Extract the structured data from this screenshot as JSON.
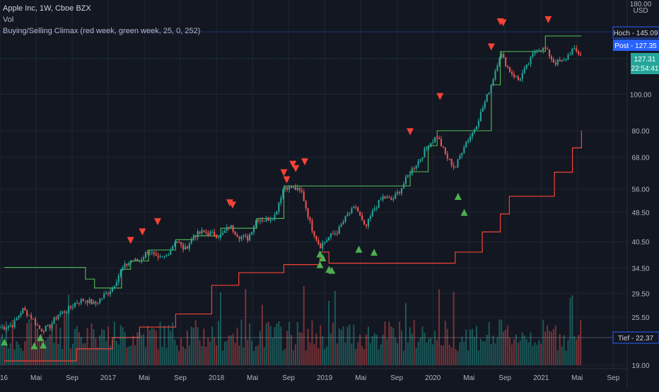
{
  "legend": {
    "symbol": "Apple Inc, 1W, Cboe BZX",
    "volume": "Vol",
    "indicator": "Buying/Selling Climax (red week, green week, 25, 0, 252)"
  },
  "currency": "USD",
  "price_tags": {
    "hoch": "Hoch - 145.09",
    "post": "Post - 127.35",
    "last": "127.31",
    "countdown": "22:54:41",
    "tief": "Tief - 22.37"
  },
  "colors": {
    "background": "#131722",
    "up": "#26a69a",
    "down": "#ef5350",
    "grid": "#1f2533",
    "resistance": "#4caf50",
    "support": "#f44336"
  },
  "chart_data": {
    "type": "line",
    "scale": "log",
    "x_tick_labels": [
      "2016",
      "Mai",
      "Sep",
      "2017",
      "Mai",
      "Sep",
      "2018",
      "Mai",
      "Sep",
      "2019",
      "Mai",
      "Sep",
      "2020",
      "Mai",
      "Sep",
      "2021",
      "Mai",
      "Sep"
    ],
    "y_tick_labels": [
      "180.00",
      "100.00",
      "80.00",
      "68.00",
      "56.00",
      "48.50",
      "40.50",
      "34.50",
      "29.50",
      "25.50",
      "19.00"
    ],
    "price": [
      [
        "2016-01",
        24.0
      ],
      [
        "2016-02",
        24.4
      ],
      [
        "2016-03",
        26.8
      ],
      [
        "2016-04",
        25.5
      ],
      [
        "2016-05",
        23.6
      ],
      [
        "2016-06",
        24.0
      ],
      [
        "2016-07",
        26.0
      ],
      [
        "2016-08",
        26.6
      ],
      [
        "2016-09",
        28.0
      ],
      [
        "2016-10",
        28.4
      ],
      [
        "2016-11",
        27.6
      ],
      [
        "2016-12",
        29.0
      ],
      [
        "2017-01",
        30.5
      ],
      [
        "2017-02",
        34.2
      ],
      [
        "2017-03",
        36.0
      ],
      [
        "2017-04",
        36.1
      ],
      [
        "2017-05",
        38.5
      ],
      [
        "2017-06",
        36.2
      ],
      [
        "2017-07",
        37.2
      ],
      [
        "2017-08",
        41.0
      ],
      [
        "2017-09",
        38.5
      ],
      [
        "2017-10",
        42.0
      ],
      [
        "2017-11",
        43.0
      ],
      [
        "2017-12",
        42.5
      ],
      [
        "2018-01",
        41.9
      ],
      [
        "2018-02",
        44.6
      ],
      [
        "2018-03",
        41.9
      ],
      [
        "2018-04",
        41.3
      ],
      [
        "2018-05",
        46.7
      ],
      [
        "2018-06",
        46.3
      ],
      [
        "2018-07",
        47.6
      ],
      [
        "2018-08",
        56.9
      ],
      [
        "2018-09",
        56.4
      ],
      [
        "2018-10",
        54.7
      ],
      [
        "2018-11",
        44.6
      ],
      [
        "2018-12",
        39.4
      ],
      [
        "2019-01",
        41.6
      ],
      [
        "2019-02",
        43.3
      ],
      [
        "2019-03",
        47.5
      ],
      [
        "2019-04",
        50.2
      ],
      [
        "2019-05",
        43.8
      ],
      [
        "2019-06",
        49.5
      ],
      [
        "2019-07",
        53.3
      ],
      [
        "2019-08",
        52.2
      ],
      [
        "2019-09",
        56.1
      ],
      [
        "2019-10",
        62.2
      ],
      [
        "2019-11",
        66.8
      ],
      [
        "2019-12",
        73.4
      ],
      [
        "2020-01",
        77.4
      ],
      [
        "2020-02",
        68.3
      ],
      [
        "2020-03",
        63.6
      ],
      [
        "2020-04",
        73.4
      ],
      [
        "2020-05",
        79.5
      ],
      [
        "2020-06",
        91.2
      ],
      [
        "2020-07",
        106.3
      ],
      [
        "2020-08",
        129.0
      ],
      [
        "2020-09",
        115.8
      ],
      [
        "2020-10",
        108.9
      ],
      [
        "2020-11",
        119.1
      ],
      [
        "2020-12",
        132.7
      ],
      [
        "2021-01",
        131.9
      ],
      [
        "2021-02",
        121.3
      ],
      [
        "2021-03",
        122.2
      ],
      [
        "2021-04",
        131.5
      ],
      [
        "2021-05",
        127.3
      ]
    ],
    "resistance_line": [
      [
        "2016-01",
        34.6
      ],
      [
        "2016-08",
        34.6
      ],
      [
        "2016-10",
        32.2
      ],
      [
        "2016-11",
        30.5
      ],
      [
        "2017-01",
        30.5
      ],
      [
        "2017-02",
        34.2
      ],
      [
        "2017-03",
        36.0
      ],
      [
        "2017-05",
        38.5
      ],
      [
        "2017-08",
        41.0
      ],
      [
        "2017-10",
        42.0
      ],
      [
        "2018-01",
        44.0
      ],
      [
        "2018-05",
        46.7
      ],
      [
        "2018-08",
        57.0
      ],
      [
        "2019-09",
        57.0
      ],
      [
        "2019-10",
        62.2
      ],
      [
        "2019-12",
        73.0
      ],
      [
        "2020-01",
        80.0
      ],
      [
        "2020-06",
        80.0
      ],
      [
        "2020-07",
        106.0
      ],
      [
        "2020-08",
        130.0
      ],
      [
        "2020-12",
        130.0
      ],
      [
        "2021-01",
        143.0
      ],
      [
        "2021-05",
        143.0
      ]
    ],
    "support_line": [
      [
        "2016-01",
        19.5
      ],
      [
        "2016-06",
        19.5
      ],
      [
        "2016-09",
        21.0
      ],
      [
        "2017-01",
        22.5
      ],
      [
        "2017-04",
        24.0
      ],
      [
        "2017-08",
        26.0
      ],
      [
        "2017-12",
        31.0
      ],
      [
        "2018-03",
        33.5
      ],
      [
        "2018-08",
        35.2
      ],
      [
        "2018-12",
        38.0
      ],
      [
        "2019-01",
        35.5
      ],
      [
        "2019-12",
        35.5
      ],
      [
        "2020-03",
        38.0
      ],
      [
        "2020-06",
        43.0
      ],
      [
        "2020-08",
        48.0
      ],
      [
        "2020-09",
        53.5
      ],
      [
        "2021-01",
        53.5
      ],
      [
        "2021-02",
        62.0
      ],
      [
        "2021-04",
        72.0
      ],
      [
        "2021-05",
        80.0
      ]
    ],
    "selling_climax": [
      [
        "2017-03",
        40.8
      ],
      [
        "2017-04",
        43.0
      ],
      [
        "2017-06",
        45.8
      ],
      [
        "2018-02",
        50.7
      ],
      [
        "2018-02",
        51.4
      ],
      [
        "2018-08",
        59.2
      ],
      [
        "2018-08",
        61.8
      ],
      [
        "2018-09",
        63.4
      ],
      [
        "2018-09",
        65.1
      ],
      [
        "2018-10",
        66.1
      ],
      [
        "2019-10",
        79.5
      ],
      [
        "2020-01",
        98.6
      ],
      [
        "2020-07",
        133.7
      ],
      [
        "2020-08",
        155.0
      ],
      [
        "2020-08",
        156.0
      ],
      [
        "2021-01",
        158.0
      ]
    ],
    "buying_climax": [
      [
        "2016-01",
        21.9
      ],
      [
        "2016-04",
        21.4
      ],
      [
        "2016-05",
        22.5
      ],
      [
        "2016-05",
        21.5
      ],
      [
        "2018-12",
        37.6
      ],
      [
        "2018-12",
        36.7
      ],
      [
        "2018-12",
        35.2
      ],
      [
        "2019-01",
        34.0
      ],
      [
        "2019-01",
        34.2
      ],
      [
        "2019-04",
        38.7
      ],
      [
        "2019-06",
        38.0
      ],
      [
        "2020-03",
        53.5
      ],
      [
        "2020-04",
        48.5
      ]
    ],
    "volume_max_hint": "Vol"
  }
}
